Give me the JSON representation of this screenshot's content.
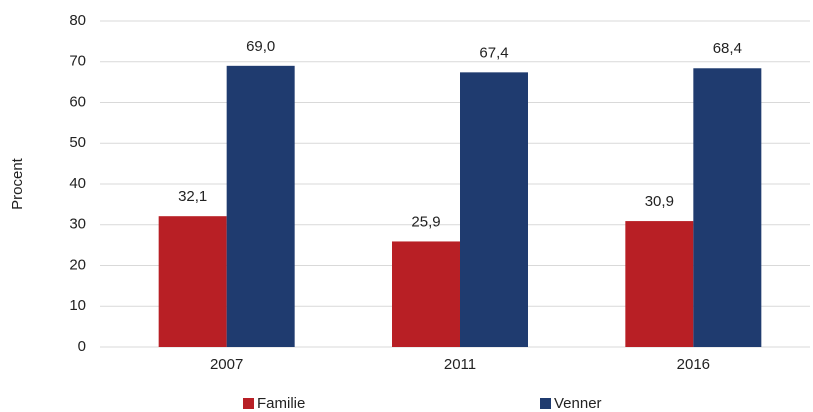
{
  "chart_data": {
    "type": "bar",
    "y_label": "Procent",
    "categories": [
      "2007",
      "2011",
      "2016"
    ],
    "series": [
      {
        "name": "Familie",
        "color": "#b81f25",
        "values": [
          32.1,
          25.9,
          30.9
        ],
        "value_labels": [
          "32,1",
          "25,9",
          "30,9"
        ]
      },
      {
        "name": "Venner",
        "color": "#1f3b6f",
        "values": [
          69.0,
          67.4,
          68.4
        ],
        "value_labels": [
          "69,0",
          "67,4",
          "68,4"
        ]
      }
    ],
    "ylim": [
      0,
      80
    ],
    "yticks": [
      0,
      10,
      20,
      30,
      40,
      50,
      60,
      70,
      80
    ],
    "grid": true,
    "legend": "bottom"
  }
}
